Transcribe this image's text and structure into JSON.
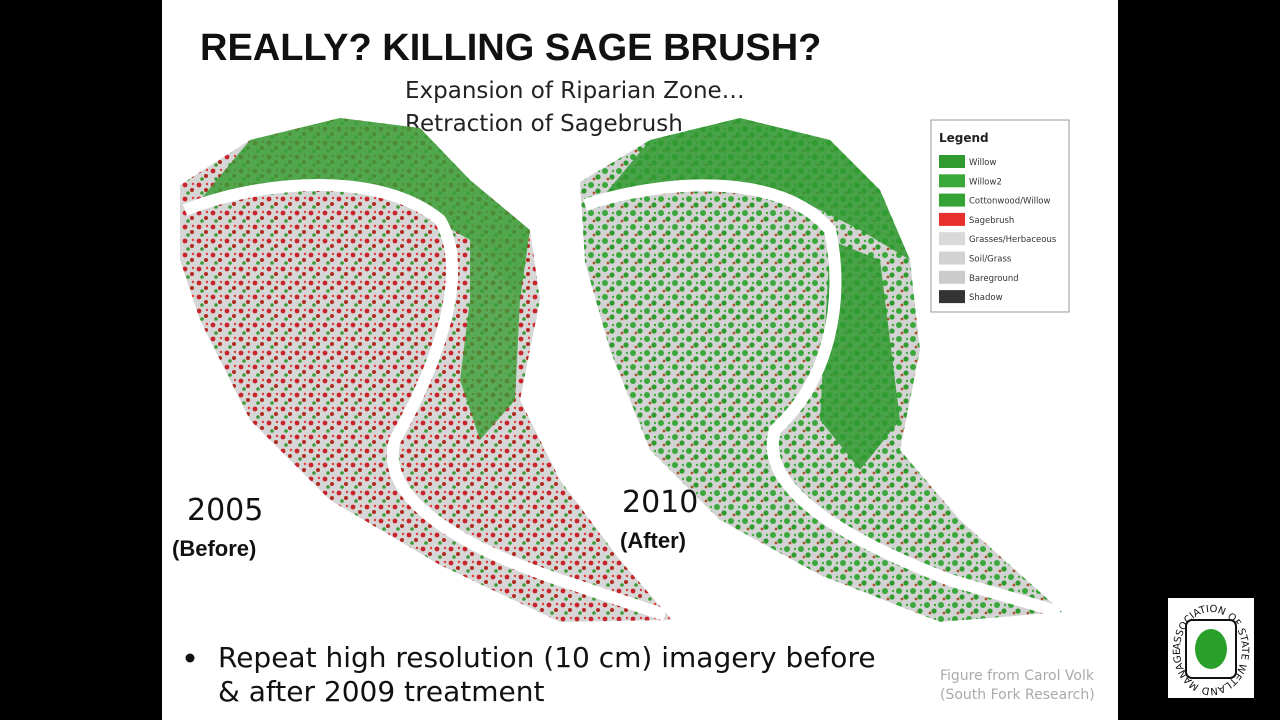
{
  "slide": {
    "title": "REALLY? KILLING SAGE BRUSH?",
    "subtitle": [
      "Expansion of Riparian Zone…",
      "Retraction of Sagebrush"
    ],
    "maps": [
      {
        "year": "2005",
        "note": "(Before)"
      },
      {
        "year": "2010",
        "note": "(After)"
      }
    ],
    "legend": {
      "title": "Legend",
      "items": [
        {
          "label": "Willow",
          "color": "#2f9a2f"
        },
        {
          "label": "Willow2",
          "color": "#3aa83a"
        },
        {
          "label": "Cottonwood/Willow",
          "color": "#34a234"
        },
        {
          "label": "Sagebrush",
          "color": "#e8312f"
        },
        {
          "label": "Grasses/Herbaceous",
          "color": "#d9d9d9"
        },
        {
          "label": "Soil/Grass",
          "color": "#d2d2d2"
        },
        {
          "label": "Bareground",
          "color": "#cbcbcb"
        },
        {
          "label": "Shadow",
          "color": "#333333"
        }
      ]
    },
    "bullet": [
      "Repeat high resolution (10 cm) imagery before",
      "& after 2009 treatment"
    ],
    "credit": [
      "Figure from Carol Volk",
      "(South Fork Research)"
    ],
    "logo": "ASSOCIATION OF STATE WETLAND MANAGERS"
  }
}
